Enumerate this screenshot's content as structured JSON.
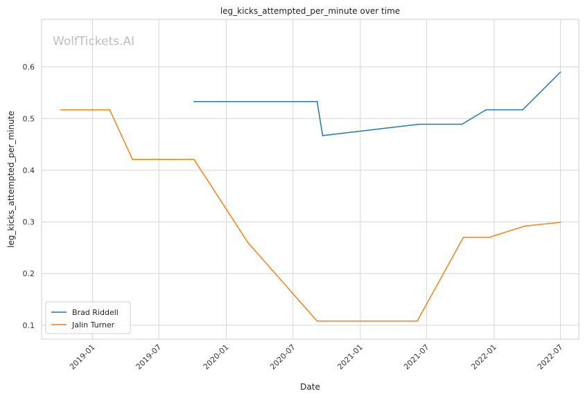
{
  "chart_data": {
    "type": "line",
    "title": "leg_kicks_attempted_per_minute over time",
    "xlabel": "Date",
    "ylabel": "leg_kicks_attempted_per_minute",
    "watermark": "WolfTickets.AI",
    "x_ticks": [
      "2019-01",
      "2019-07",
      "2020-01",
      "2020-07",
      "2021-01",
      "2021-07",
      "2022-01",
      "2022-07"
    ],
    "y_ticks": [
      "0.1",
      "0.2",
      "0.3",
      "0.4",
      "0.5",
      "0.6"
    ],
    "xlim": [
      "2018-08-15",
      "2022-08-20"
    ],
    "ylim": [
      0.073,
      0.692
    ],
    "grid": true,
    "legend_position": "lower-left",
    "series": [
      {
        "name": "Brad Riddell",
        "color": "#1f77b4",
        "points": [
          [
            "2019-10-05",
            0.533
          ],
          [
            "2020-09-05",
            0.533
          ],
          [
            "2020-09-20",
            0.467
          ],
          [
            "2021-06-10",
            0.489
          ],
          [
            "2021-10-05",
            0.489
          ],
          [
            "2021-12-10",
            0.517
          ],
          [
            "2022-03-20",
            0.517
          ],
          [
            "2022-07-01",
            0.59
          ]
        ]
      },
      {
        "name": "Jalin Turner",
        "color": "#ff7f0e",
        "points": [
          [
            "2018-10-06",
            0.517
          ],
          [
            "2019-02-17",
            0.517
          ],
          [
            "2019-04-20",
            0.421
          ],
          [
            "2019-10-05",
            0.421
          ],
          [
            "2020-02-29",
            0.26
          ],
          [
            "2020-09-05",
            0.108
          ],
          [
            "2021-06-05",
            0.108
          ],
          [
            "2021-10-09",
            0.27
          ],
          [
            "2021-12-18",
            0.27
          ],
          [
            "2022-03-26",
            0.292
          ],
          [
            "2022-07-01",
            0.299
          ]
        ]
      }
    ]
  }
}
